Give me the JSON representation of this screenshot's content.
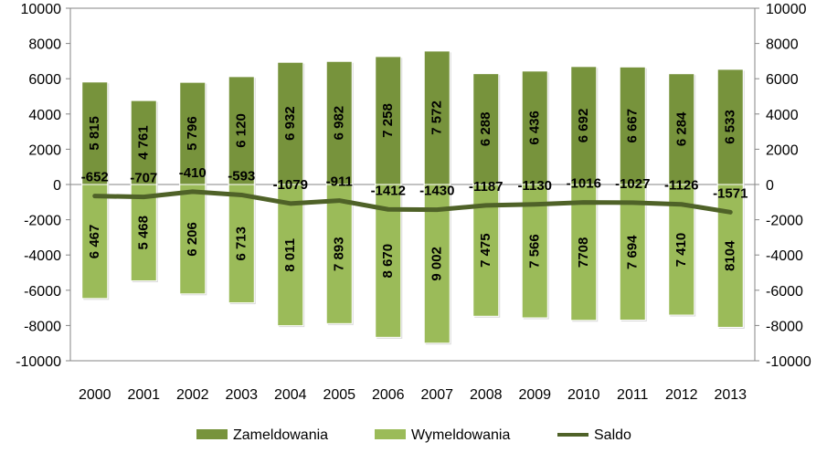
{
  "chart_data": {
    "type": "bar",
    "title": "",
    "categories": [
      "2000",
      "2001",
      "2002",
      "2003",
      "2004",
      "2005",
      "2006",
      "2007",
      "2008",
      "2009",
      "2010",
      "2011",
      "2012",
      "2013"
    ],
    "series": [
      {
        "name": "Zameldowania",
        "kind": "bar",
        "color": "#77933C",
        "values": [
          5815,
          4761,
          5796,
          6120,
          6932,
          6982,
          7258,
          7572,
          6288,
          6436,
          6692,
          6667,
          6284,
          6533
        ],
        "labels": [
          "5 815",
          "4 761",
          "5 796",
          "6 120",
          "6 932",
          "6 982",
          "7 258",
          "7 572",
          "6 288",
          "6 436",
          "6 692",
          "6 667",
          "6 284",
          "6 533"
        ]
      },
      {
        "name": "Wymeldowania",
        "kind": "bar",
        "color": "#9BBB59",
        "values": [
          -6467,
          -5468,
          -6206,
          -6713,
          -8011,
          -7893,
          -8670,
          -9002,
          -7475,
          -7566,
          -7708,
          -7694,
          -7410,
          -8104
        ],
        "labels": [
          "6 467",
          "5 468",
          "6 206",
          "6 713",
          "8 011",
          "7 893",
          "8 670",
          "9 002",
          "7 475",
          "7 566",
          "7708",
          "7 694",
          "7 410",
          "8104"
        ]
      },
      {
        "name": "Saldo",
        "kind": "line",
        "color": "#4F6228",
        "values": [
          -652,
          -707,
          -410,
          -593,
          -1079,
          -911,
          -1412,
          -1430,
          -1187,
          -1130,
          -1016,
          -1027,
          -1126,
          -1571
        ],
        "labels": [
          "-652",
          "-707",
          "-410",
          "-593",
          "-1079",
          "-911",
          "-1412",
          "-1430",
          "-1187",
          "-1130",
          "-1016",
          "-1027",
          "-1126",
          "-1571"
        ]
      }
    ],
    "ylim": [
      -10000,
      10000
    ],
    "yticks": [
      10000,
      8000,
      6000,
      4000,
      2000,
      0,
      -2000,
      -4000,
      -6000,
      -8000,
      -10000
    ],
    "secondary_y": true,
    "grid": false,
    "legend_position": "bottom",
    "xlabel": "",
    "ylabel": ""
  }
}
